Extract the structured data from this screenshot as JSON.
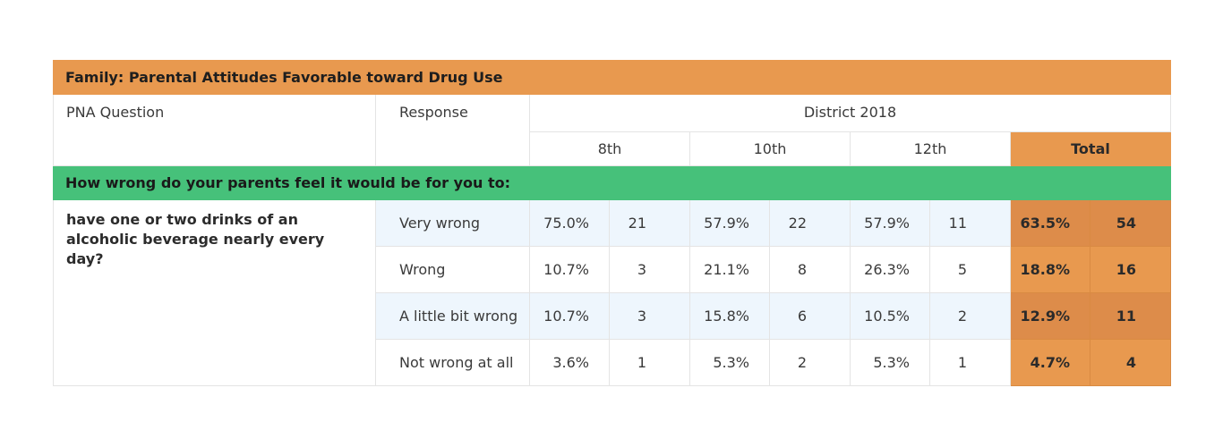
{
  "title": "Family: Parental Attitudes Favorable toward Drug Use",
  "headers": {
    "question": "PNA Question",
    "response": "Response",
    "district": "District 2018",
    "grades": [
      "8th",
      "10th",
      "12th"
    ],
    "total": "Total"
  },
  "section": "How wrong do your parents feel it would be for you to:",
  "question": "have one or two drinks of an alcoholic beverage nearly every day?",
  "rows": [
    {
      "response": "Very wrong",
      "g8_pct": "75.0%",
      "g8_n": "21",
      "g10_pct": "57.9%",
      "g10_n": "22",
      "g12_pct": "57.9%",
      "g12_n": "11",
      "total_pct": "63.5%",
      "total_n": "54"
    },
    {
      "response": "Wrong",
      "g8_pct": "10.7%",
      "g8_n": "3",
      "g10_pct": "21.1%",
      "g10_n": "8",
      "g12_pct": "26.3%",
      "g12_n": "5",
      "total_pct": "18.8%",
      "total_n": "16"
    },
    {
      "response": "A little bit wrong",
      "g8_pct": "10.7%",
      "g8_n": "3",
      "g10_pct": "15.8%",
      "g10_n": "6",
      "g12_pct": "10.5%",
      "g12_n": "2",
      "total_pct": "12.9%",
      "total_n": "11"
    },
    {
      "response": "Not wrong at all",
      "g8_pct": "3.6%",
      "g8_n": "1",
      "g10_pct": "5.3%",
      "g10_n": "2",
      "g12_pct": "5.3%",
      "g12_n": "1",
      "total_pct": "4.7%",
      "total_n": "4"
    }
  ]
}
